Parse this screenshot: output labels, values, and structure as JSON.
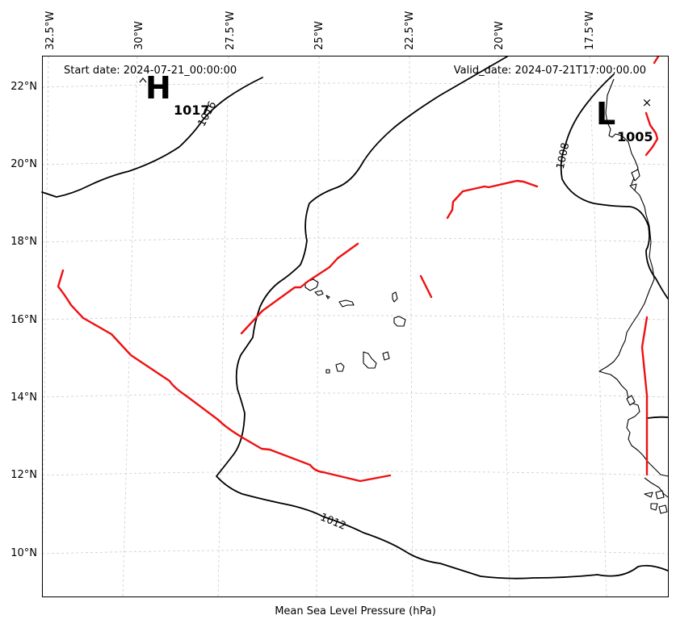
{
  "header": {
    "start_date": "Start date: 2024-07-21_00:00:00",
    "valid_date": "Valid_date: 2024-07-21T17:00:00.00"
  },
  "caption": "Mean Sea Level Pressure (hPa)",
  "axes": {
    "lon_ticks": [
      "32.5°W",
      "30°W",
      "27.5°W",
      "25°W",
      "22.5°W",
      "20°W",
      "17.5°W"
    ],
    "lat_ticks": [
      "22°N",
      "20°N",
      "18°N",
      "16°N",
      "14°N",
      "12°N",
      "10°N"
    ],
    "grid": true
  },
  "pressure_centres": {
    "high": {
      "letter": "H",
      "value": "1017"
    },
    "low": {
      "letter": "L",
      "value": "1005",
      "marker": "×"
    }
  },
  "isobar_labels": [
    "1016",
    "1012",
    "1008"
  ],
  "colors": {
    "isobar": "#000000",
    "trough": "#ee1111",
    "grid": "#cccccc",
    "coastline": "#000000"
  }
}
